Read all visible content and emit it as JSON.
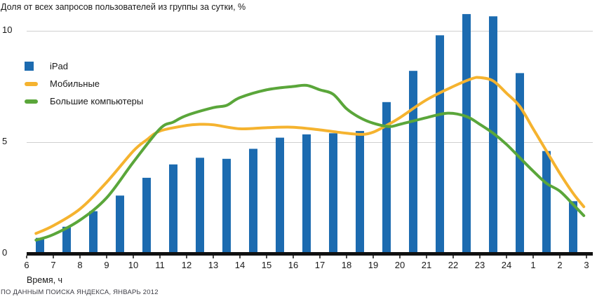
{
  "title": "Доля от всех запросов пользователей из группы за сутки, %",
  "footer": "ПО ДАННЫМ ПОИСКА ЯНДЕКСА, ЯНВАРЬ 2012",
  "legend": {
    "items": [
      {
        "label": "iPad",
        "swatch": "square",
        "color": "#1c6bb0"
      },
      {
        "label": "Мобильные",
        "swatch": "line",
        "color": "#f5b32f"
      },
      {
        "label": "Большие компьютеры",
        "swatch": "line",
        "color": "#5aa63a"
      }
    ]
  },
  "x_axis": {
    "label": "Время, ч"
  },
  "y_axis": {
    "tick_labels": [
      "0",
      "5",
      "10"
    ],
    "tick_values": [
      0,
      5,
      10
    ]
  },
  "colors": {
    "bar_blue": "#1c6bb0",
    "line_yellow": "#f5b32f",
    "line_green": "#5aa63a",
    "gridline": "#cfcfcf",
    "axis_black": "#111111",
    "text": "#1a1a1a",
    "footer_text": "#3c3c44"
  },
  "chart_data": {
    "type": "combo",
    "title": "Доля от всех запросов пользователей из группы за сутки, %",
    "xlabel": "Время, ч",
    "ylabel": "",
    "ylim": [
      0,
      11.4
    ],
    "y_gridlines": [
      5,
      10
    ],
    "grid": "horizontal-only",
    "legend_position": "top-left-inside",
    "x_unit_note": "hours of day, 6:00 through 3:00 next day",
    "x_tick_hours": [
      6,
      7,
      8,
      9,
      10,
      11,
      12,
      13,
      14,
      15,
      16,
      17,
      18,
      19,
      20,
      21,
      22,
      23,
      24,
      25,
      26,
      27
    ],
    "x_tick_labels": [
      "6",
      "7",
      "8",
      "9",
      "10",
      "11",
      "12",
      "13",
      "14",
      "15",
      "16",
      "17",
      "18",
      "19",
      "20",
      "21",
      "22",
      "23",
      "24",
      "1",
      "2",
      "3"
    ],
    "series": [
      {
        "name": "iPad",
        "type": "bar",
        "color": "#1c6bb0",
        "x": [
          6.5,
          7.5,
          8.5,
          9.5,
          10.5,
          11.5,
          12.5,
          13.5,
          14.5,
          15.5,
          16.5,
          17.5,
          18.5,
          19.5,
          20.5,
          21.5,
          22.5,
          23.5,
          24.5,
          25.5,
          26.5
        ],
        "values": [
          0.7,
          1.2,
          1.9,
          2.6,
          3.4,
          4.0,
          4.3,
          4.25,
          4.7,
          5.2,
          5.35,
          5.4,
          5.5,
          6.8,
          8.2,
          9.8,
          10.75,
          10.65,
          8.1,
          4.6,
          2.35
        ]
      },
      {
        "name": "Мобильные",
        "slug": "mobile",
        "type": "line",
        "color": "#f5b32f",
        "points": [
          [
            6.35,
            0.9
          ],
          [
            7,
            1.25
          ],
          [
            8,
            2.0
          ],
          [
            9,
            3.2
          ],
          [
            10,
            4.6
          ],
          [
            10.5,
            5.1
          ],
          [
            11,
            5.5
          ],
          [
            12,
            5.75
          ],
          [
            12.5,
            5.8
          ],
          [
            13,
            5.78
          ],
          [
            14,
            5.6
          ],
          [
            15,
            5.65
          ],
          [
            16,
            5.67
          ],
          [
            17,
            5.55
          ],
          [
            18,
            5.4
          ],
          [
            18.6,
            5.35
          ],
          [
            19,
            5.45
          ],
          [
            19.5,
            5.75
          ],
          [
            20,
            6.1
          ],
          [
            21,
            6.9
          ],
          [
            22,
            7.5
          ],
          [
            22.7,
            7.85
          ],
          [
            23,
            7.9
          ],
          [
            23.5,
            7.75
          ],
          [
            24,
            7.2
          ],
          [
            24.5,
            6.6
          ],
          [
            25,
            5.6
          ],
          [
            25.5,
            4.6
          ],
          [
            26,
            3.6
          ],
          [
            26.5,
            2.7
          ],
          [
            26.9,
            2.1
          ]
        ]
      },
      {
        "name": "Большие компьютеры",
        "slug": "desktop",
        "type": "line",
        "color": "#5aa63a",
        "points": [
          [
            6.35,
            0.6
          ],
          [
            7,
            0.85
          ],
          [
            8,
            1.5
          ],
          [
            9,
            2.5
          ],
          [
            10,
            4.1
          ],
          [
            11,
            5.6
          ],
          [
            11.5,
            5.9
          ],
          [
            12,
            6.2
          ],
          [
            13,
            6.55
          ],
          [
            13.5,
            6.65
          ],
          [
            14,
            7.0
          ],
          [
            15,
            7.35
          ],
          [
            16,
            7.5
          ],
          [
            16.5,
            7.55
          ],
          [
            17,
            7.35
          ],
          [
            17.5,
            7.15
          ],
          [
            18,
            6.5
          ],
          [
            18.5,
            6.1
          ],
          [
            19,
            5.85
          ],
          [
            19.6,
            5.7
          ],
          [
            20,
            5.8
          ],
          [
            21,
            6.1
          ],
          [
            21.8,
            6.3
          ],
          [
            22.5,
            6.15
          ],
          [
            23,
            5.8
          ],
          [
            23.5,
            5.4
          ],
          [
            24,
            4.9
          ],
          [
            24.5,
            4.3
          ],
          [
            25,
            3.7
          ],
          [
            25.5,
            3.15
          ],
          [
            26,
            2.8
          ],
          [
            26.5,
            2.2
          ],
          [
            26.9,
            1.7
          ]
        ]
      }
    ]
  }
}
